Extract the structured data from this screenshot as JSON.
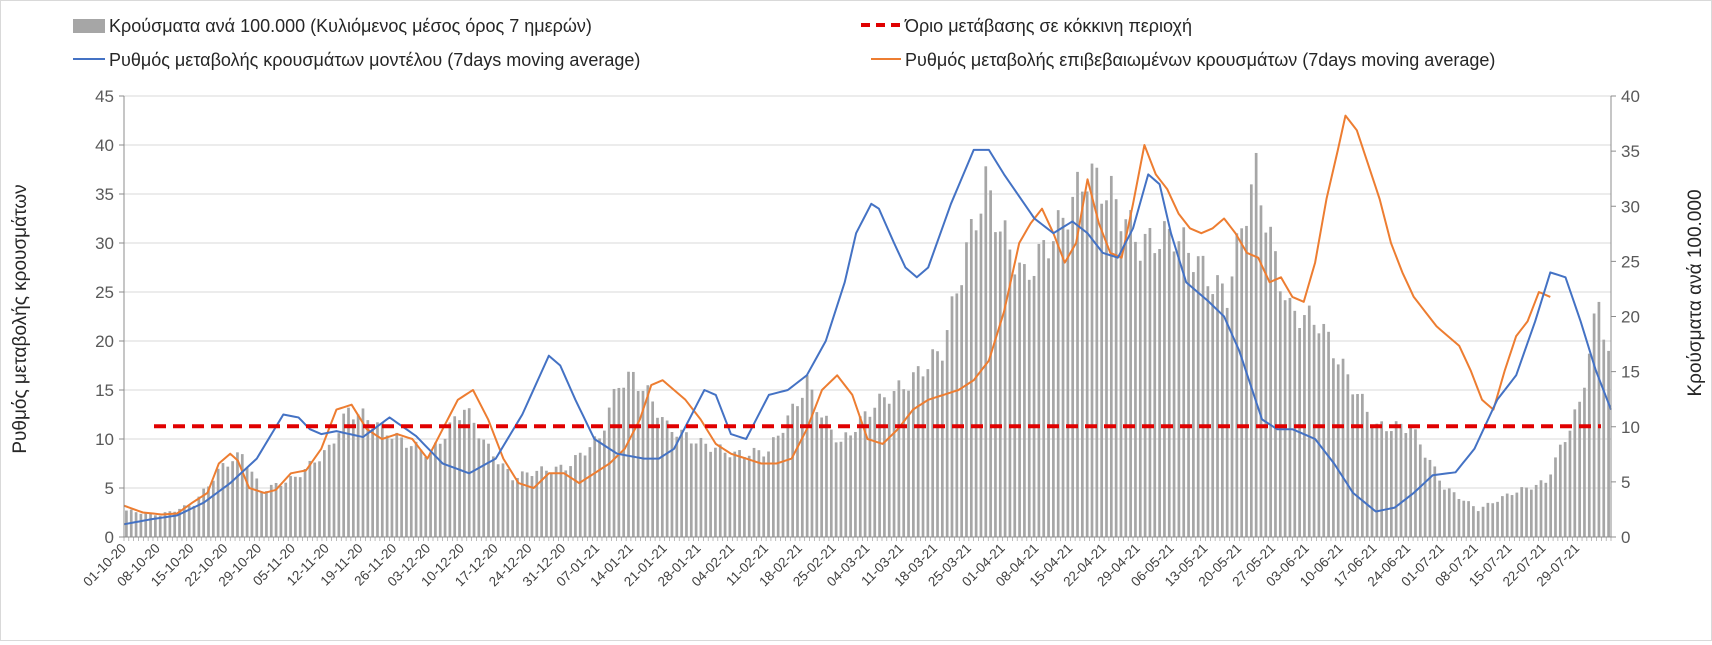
{
  "chart_data": {
    "type": "bar",
    "title": "",
    "ylabel_left": "Ρυθμός μεταβολής κρουσμάτων",
    "ylabel_right": "Κρούσματα ανά 100.000",
    "ylim_left": [
      0,
      45
    ],
    "ylim_right": [
      0,
      40
    ],
    "left_ticks": [
      0,
      5,
      10,
      15,
      20,
      25,
      30,
      35,
      40,
      45
    ],
    "right_ticks": [
      0,
      5,
      10,
      15,
      20,
      25,
      30,
      35,
      40
    ],
    "x_start": "2020-10-01",
    "days": 308,
    "x_tick_labels": [
      "01-10-20",
      "08-10-20",
      "15-10-20",
      "22-10-20",
      "29-10-20",
      "05-11-20",
      "12-11-20",
      "19-11-20",
      "26-11-20",
      "03-12-20",
      "10-12-20",
      "17-12-20",
      "24-12-20",
      "31-12-20",
      "07-01-21",
      "14-01-21",
      "21-01-21",
      "28-01-21",
      "04-02-21",
      "11-02-21",
      "18-02-21",
      "25-02-21",
      "04-03-21",
      "11-03-21",
      "18-03-21",
      "25-03-21",
      "01-04-21",
      "08-04-21",
      "15-04-21",
      "22-04-21",
      "29-04-21",
      "06-05-21",
      "13-05-21",
      "20-05-21",
      "27-05-21",
      "03-06-21",
      "10-06-21",
      "17-06-21",
      "24-06-21",
      "01-07-21",
      "08-07-21",
      "15-07-21",
      "22-07-21",
      "29-07-21"
    ],
    "legend": {
      "bars": "Κρούσματα ανά 100.000 (Κυλιόμενος μέσος όρος 7 ημερών)",
      "threshold": "Όριο μετάβασης σε κόκκινη περιοχή",
      "model": "Ρυθμός μεταβολής κρουσμάτων μοντέλου (7days moving average)",
      "confirmed": "Ρυθμός μεταβολής επιβεβαιωμένων κρουσμάτων (7days moving average)"
    },
    "colors": {
      "bars": "#a6a6a6",
      "threshold": "#e00000",
      "model": "#4472c4",
      "confirmed": "#ed7d31",
      "grid": "#d9d9d9"
    },
    "threshold_left_value": 11.3,
    "bars_keypoints": [
      [
        0,
        2.4
      ],
      [
        7,
        2.0
      ],
      [
        14,
        3.0
      ],
      [
        20,
        6.5
      ],
      [
        24,
        7.5
      ],
      [
        28,
        4.2
      ],
      [
        35,
        5.4
      ],
      [
        42,
        8.0
      ],
      [
        46,
        11.5
      ],
      [
        49,
        11.0
      ],
      [
        56,
        9.0
      ],
      [
        63,
        7.5
      ],
      [
        70,
        11.8
      ],
      [
        75,
        8.0
      ],
      [
        80,
        5.4
      ],
      [
        85,
        6.0
      ],
      [
        91,
        6.3
      ],
      [
        98,
        9.0
      ],
      [
        102,
        14.0
      ],
      [
        105,
        14.5
      ],
      [
        108,
        13.0
      ],
      [
        112,
        10.0
      ],
      [
        119,
        8.5
      ],
      [
        126,
        7.5
      ],
      [
        133,
        7.8
      ],
      [
        138,
        11.5
      ],
      [
        141,
        14.0
      ],
      [
        144,
        11.0
      ],
      [
        148,
        8.5
      ],
      [
        155,
        12.0
      ],
      [
        162,
        14.0
      ],
      [
        169,
        17.0
      ],
      [
        174,
        26.0
      ],
      [
        178,
        32.0
      ],
      [
        181,
        28.0
      ],
      [
        186,
        23.5
      ],
      [
        193,
        28.0
      ],
      [
        199,
        33.0
      ],
      [
        204,
        31.0
      ],
      [
        210,
        26.5
      ],
      [
        217,
        27.5
      ],
      [
        221,
        25.5
      ],
      [
        225,
        23.0
      ],
      [
        228,
        22.0
      ],
      [
        232,
        30.0
      ],
      [
        234,
        33.0
      ],
      [
        238,
        25.0
      ],
      [
        241,
        20.5
      ],
      [
        247,
        19.5
      ],
      [
        253,
        14.5
      ],
      [
        259,
        10.0
      ],
      [
        266,
        10.0
      ],
      [
        273,
        4.5
      ],
      [
        280,
        2.5
      ],
      [
        287,
        4.0
      ],
      [
        294,
        5.0
      ],
      [
        301,
        12.0
      ],
      [
        305,
        21.5
      ],
      [
        308,
        14.0
      ]
    ],
    "model_keypoints": [
      [
        0,
        1.3
      ],
      [
        7,
        1.8
      ],
      [
        14,
        2.2
      ],
      [
        21,
        3.5
      ],
      [
        28,
        5.5
      ],
      [
        35,
        8.0
      ],
      [
        42,
        12.5
      ],
      [
        46,
        12.2
      ],
      [
        49,
        11.0
      ],
      [
        52,
        10.5
      ],
      [
        56,
        10.8
      ],
      [
        63,
        10.2
      ],
      [
        70,
        12.2
      ],
      [
        77,
        10.3
      ],
      [
        84,
        7.5
      ],
      [
        91,
        6.5
      ],
      [
        98,
        8.0
      ],
      [
        105,
        12.5
      ],
      [
        112,
        18.5
      ],
      [
        115,
        17.5
      ],
      [
        119,
        14.0
      ],
      [
        124,
        10.0
      ],
      [
        130,
        8.5
      ],
      [
        137,
        8.0
      ],
      [
        141,
        8.0
      ],
      [
        145,
        9.0
      ],
      [
        149,
        12.0
      ],
      [
        153,
        15.0
      ],
      [
        156,
        14.5
      ],
      [
        160,
        10.5
      ],
      [
        164,
        10.0
      ],
      [
        170,
        14.5
      ],
      [
        175,
        15.0
      ],
      [
        180,
        16.5
      ],
      [
        185,
        20.0
      ],
      [
        190,
        26.0
      ],
      [
        193,
        31.0
      ],
      [
        197,
        34.0
      ],
      [
        199,
        33.5
      ],
      [
        203,
        30.0
      ],
      [
        206,
        27.5
      ],
      [
        209,
        26.5
      ],
      [
        212,
        27.5
      ],
      [
        218,
        34.0
      ],
      [
        224,
        39.5
      ],
      [
        228,
        39.5
      ],
      [
        232,
        37.0
      ],
      [
        240,
        32.5
      ],
      [
        245,
        31.0
      ],
      [
        250,
        32.2
      ],
      [
        254,
        31.0
      ],
      [
        258,
        29.0
      ],
      [
        262,
        28.5
      ],
      [
        266,
        31.5
      ],
      [
        270,
        37.0
      ],
      [
        273,
        36.0
      ],
      [
        276,
        31.0
      ],
      [
        280,
        26.0
      ],
      [
        286,
        24.0
      ],
      [
        290,
        22.5
      ],
      [
        294,
        19.0
      ],
      [
        297,
        15.5
      ],
      [
        300,
        12.0
      ],
      [
        304,
        11.0
      ],
      [
        308,
        11.0
      ],
      [
        314,
        10.0
      ],
      [
        319,
        7.5
      ],
      [
        324,
        4.5
      ],
      [
        330,
        2.6
      ],
      [
        335,
        3.0
      ],
      [
        340,
        4.5
      ],
      [
        345,
        6.3
      ],
      [
        351,
        6.6
      ],
      [
        356,
        9.0
      ],
      [
        362,
        14.0
      ],
      [
        367,
        16.5
      ],
      [
        372,
        22.0
      ],
      [
        376,
        27.0
      ],
      [
        380,
        26.5
      ],
      [
        384,
        22.0
      ],
      [
        388,
        17.0
      ],
      [
        392,
        13.0
      ]
    ],
    "confirmed_keypoints": [
      [
        0,
        3.2
      ],
      [
        5,
        2.5
      ],
      [
        10,
        2.3
      ],
      [
        14,
        2.4
      ],
      [
        18,
        3.5
      ],
      [
        22,
        4.5
      ],
      [
        25,
        7.5
      ],
      [
        28,
        8.5
      ],
      [
        30,
        7.8
      ],
      [
        33,
        5.0
      ],
      [
        37,
        4.5
      ],
      [
        40,
        4.8
      ],
      [
        44,
        6.5
      ],
      [
        48,
        6.8
      ],
      [
        52,
        9.0
      ],
      [
        56,
        13.0
      ],
      [
        60,
        13.5
      ],
      [
        64,
        11.0
      ],
      [
        68,
        10.0
      ],
      [
        72,
        10.5
      ],
      [
        76,
        10.0
      ],
      [
        80,
        8.0
      ],
      [
        84,
        11.0
      ],
      [
        88,
        14.0
      ],
      [
        92,
        15.0
      ],
      [
        96,
        12.0
      ],
      [
        100,
        8.0
      ],
      [
        104,
        5.5
      ],
      [
        108,
        5.0
      ],
      [
        112,
        6.5
      ],
      [
        116,
        6.5
      ],
      [
        120,
        5.5
      ],
      [
        124,
        6.5
      ],
      [
        128,
        7.5
      ],
      [
        132,
        9.0
      ],
      [
        136,
        12.0
      ],
      [
        139,
        15.5
      ],
      [
        142,
        16.0
      ],
      [
        145,
        15.0
      ],
      [
        148,
        14.0
      ],
      [
        152,
        12.0
      ],
      [
        156,
        9.5
      ],
      [
        160,
        8.5
      ],
      [
        164,
        8.0
      ],
      [
        168,
        7.5
      ],
      [
        172,
        7.5
      ],
      [
        176,
        8.0
      ],
      [
        180,
        11.0
      ],
      [
        184,
        15.0
      ],
      [
        188,
        16.5
      ],
      [
        192,
        14.5
      ],
      [
        196,
        10.0
      ],
      [
        200,
        9.5
      ],
      [
        204,
        11.0
      ],
      [
        208,
        13.0
      ],
      [
        212,
        14.0
      ],
      [
        216,
        14.5
      ],
      [
        220,
        15.0
      ],
      [
        224,
        16.0
      ],
      [
        228,
        18.0
      ],
      [
        232,
        23.0
      ],
      [
        236,
        30.0
      ],
      [
        239,
        32.0
      ],
      [
        242,
        33.5
      ],
      [
        245,
        31.0
      ],
      [
        248,
        28.0
      ],
      [
        251,
        30.0
      ],
      [
        254,
        36.5
      ],
      [
        257,
        32.0
      ],
      [
        260,
        29.0
      ],
      [
        263,
        28.5
      ],
      [
        266,
        34.0
      ],
      [
        269,
        40.0
      ],
      [
        272,
        37.0
      ],
      [
        275,
        35.5
      ],
      [
        278,
        33.0
      ],
      [
        281,
        31.5
      ],
      [
        284,
        31.0
      ],
      [
        287,
        31.5
      ],
      [
        290,
        32.5
      ],
      [
        293,
        31.0
      ],
      [
        296,
        29.0
      ],
      [
        299,
        28.5
      ],
      [
        302,
        26.0
      ],
      [
        305,
        26.5
      ],
      [
        308,
        24.5
      ],
      [
        311,
        24.0
      ],
      [
        314,
        28.0
      ],
      [
        317,
        34.5
      ],
      [
        320,
        39.5
      ],
      [
        322,
        43.0
      ],
      [
        325,
        41.5
      ],
      [
        328,
        38.0
      ],
      [
        331,
        34.5
      ],
      [
        334,
        30.0
      ],
      [
        337,
        27.0
      ],
      [
        340,
        24.5
      ],
      [
        343,
        23.0
      ],
      [
        346,
        21.5
      ],
      [
        349,
        20.5
      ],
      [
        352,
        19.5
      ],
      [
        355,
        17.0
      ],
      [
        358,
        14.0
      ],
      [
        361,
        13.0
      ],
      [
        364,
        17.0
      ],
      [
        367,
        20.5
      ],
      [
        370,
        22.0
      ],
      [
        373,
        25.0
      ],
      [
        376,
        24.5
      ]
    ]
  }
}
